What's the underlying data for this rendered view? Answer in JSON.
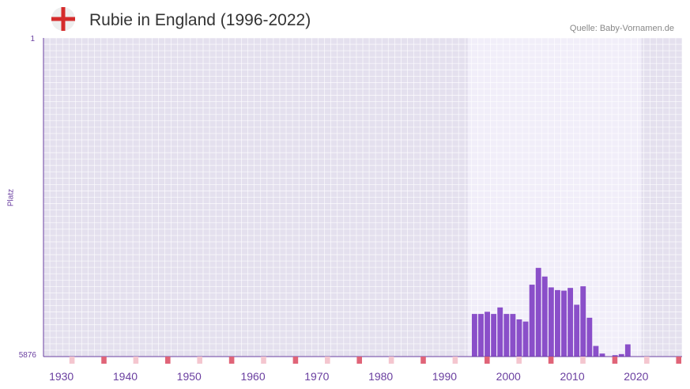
{
  "header": {
    "title": "Rubie in England (1996-2022)",
    "source": "Quelle: Baby-Vornamen.de",
    "flag_icon": "england-flag-icon"
  },
  "colors": {
    "bar": "#8a4fc9",
    "plot_bg": "#e4e0ee",
    "highlight_bg": "#f1eef9",
    "axis": "#6a3fa0",
    "decade_marker": "#e06478",
    "halfdecade_marker": "#f4c6cf",
    "flag_red": "#d52b2b",
    "flag_bg": "#eeeeee"
  },
  "chart_data": {
    "type": "bar",
    "title": "Rubie in England (1996-2022)",
    "ylabel": "Platz",
    "xlabel": "",
    "ylim": [
      5876,
      1
    ],
    "y_ticks": [
      1,
      5876
    ],
    "y_reversed": true,
    "xlim": [
      1929,
      2029
    ],
    "x_ticks": [
      1930,
      1940,
      1950,
      1960,
      1970,
      1980,
      1990,
      2000,
      2010,
      2020
    ],
    "highlight_range": [
      1996,
      2022
    ],
    "x": [
      1996,
      1997,
      1998,
      1999,
      2000,
      2001,
      2002,
      2003,
      2004,
      2005,
      2006,
      2007,
      2008,
      2009,
      2010,
      2011,
      2012,
      2013,
      2014,
      2015,
      2016,
      2017,
      2018,
      2019,
      2020,
      2021,
      2022
    ],
    "values": [
      5090,
      5090,
      5050,
      5090,
      4970,
      5090,
      5090,
      5190,
      5230,
      4550,
      4240,
      4400,
      4600,
      4650,
      4660,
      4610,
      4920,
      4580,
      5160,
      5680,
      5820,
      5890,
      5850,
      5830,
      5650,
      5880,
      6070
    ]
  }
}
